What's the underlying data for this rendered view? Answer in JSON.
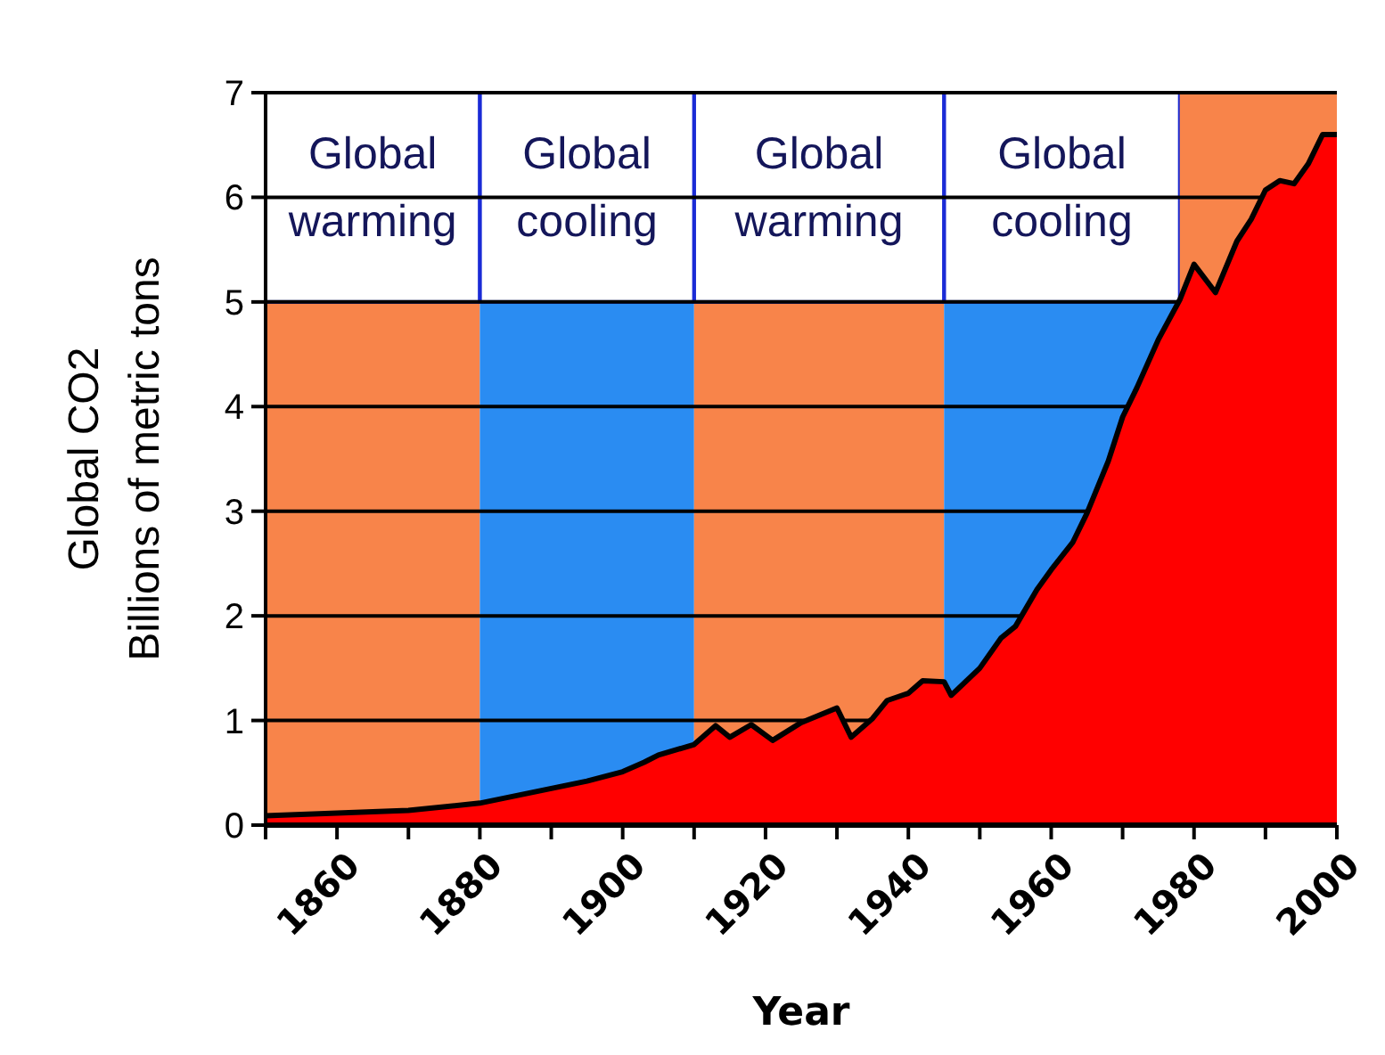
{
  "chart_data": {
    "type": "area",
    "xlabel": "Year",
    "ylabel": "Global CO2\nBillions of metric tons",
    "x": [
      1850,
      1870,
      1880,
      1885,
      1890,
      1895,
      1900,
      1903,
      1905,
      1910,
      1913,
      1915,
      1918,
      1921,
      1925,
      1930,
      1932,
      1935,
      1937,
      1940,
      1942,
      1945,
      1946,
      1950,
      1953,
      1955,
      1958,
      1960,
      1963,
      1965,
      1968,
      1970,
      1972,
      1975,
      1978,
      1980,
      1983,
      1986,
      1988,
      1990,
      1992,
      1994,
      1996,
      1998,
      2000
    ],
    "series": [
      {
        "color": "#ff0000",
        "values": [
          0.09,
          0.14,
          0.21,
          0.28,
          0.35,
          0.42,
          0.51,
          0.6,
          0.67,
          0.77,
          0.95,
          0.84,
          0.96,
          0.81,
          0.98,
          1.12,
          0.84,
          1.02,
          1.19,
          1.26,
          1.38,
          1.37,
          1.24,
          1.5,
          1.79,
          1.9,
          2.25,
          2.44,
          2.7,
          2.98,
          3.48,
          3.9,
          4.18,
          4.64,
          5.02,
          5.36,
          5.09,
          5.58,
          5.79,
          6.07,
          6.16,
          6.13,
          6.32,
          6.6,
          6.6
        ]
      }
    ],
    "xlim": [
      1850,
      2000
    ],
    "xticks": [
      {
        "value": 1850,
        "label": null
      },
      1860,
      {
        "value": 1870,
        "label": null
      },
      1880,
      {
        "value": 1890,
        "label": null
      },
      1900,
      {
        "value": 1910,
        "label": null
      },
      1920,
      {
        "value": 1930,
        "label": null
      },
      1940,
      {
        "value": 1950,
        "label": null
      },
      1960,
      {
        "value": 1970,
        "label": null
      },
      1980,
      {
        "value": 1990,
        "label": null
      },
      2000
    ],
    "ylim": [
      0,
      7
    ],
    "yticks": [
      0,
      1,
      2,
      3,
      4,
      5,
      6,
      7
    ],
    "grid": "y",
    "bands": [
      {
        "axis": "x",
        "from": 1850,
        "to": 1880,
        "label": "Global\nwarming",
        "color": "#f8844a"
      },
      {
        "axis": "x",
        "from": 1880,
        "to": 1910,
        "label": "Global\ncooling",
        "color": "#2a8cf2"
      },
      {
        "axis": "x",
        "from": 1910,
        "to": 1945,
        "label": "Global\nwarming",
        "color": "#f8844a"
      },
      {
        "axis": "x",
        "from": 1945,
        "to": 1978,
        "label": "Global\ncooling",
        "color": "#2a8cf2"
      },
      {
        "axis": "x",
        "from": 1978,
        "to": 2000,
        "color": "#f8844a"
      }
    ]
  }
}
